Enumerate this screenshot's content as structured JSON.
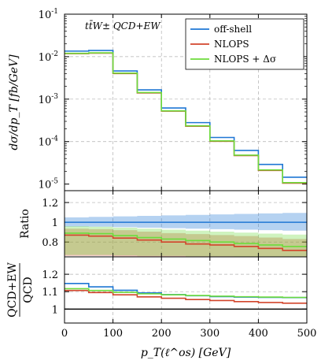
{
  "chart_data": {
    "type": "line",
    "annotation": "tt̄W± QCD+EW",
    "x_bins": [
      0,
      50,
      100,
      150,
      200,
      250,
      300,
      350,
      400,
      450,
      500
    ],
    "xlabel": "p_T(ℓ^os) [GeV]",
    "xlim": [
      0,
      500
    ],
    "x_ticks": [
      "0",
      "100",
      "200",
      "300",
      "400",
      "500"
    ],
    "grid": true,
    "legend": {
      "position": "top-right"
    },
    "panels": {
      "main": {
        "ylabel": "dσ/dp_T [fb/GeV]",
        "yscale": "log",
        "ylim": [
          7e-06,
          0.1
        ],
        "y_ticks": [
          "10^-5",
          "10^-4",
          "10^-3",
          "10^-2",
          "10^-1"
        ],
        "series": [
          {
            "name": "off-shell",
            "color": "#1f77d4",
            "values": [
              0.0135,
              0.014,
              0.0046,
              0.00165,
              0.00062,
              0.00028,
              0.000125,
              6.2e-05,
              2.9e-05,
              1.45e-05
            ]
          },
          {
            "name": "NLOPS",
            "color": "#d2452b",
            "values": [
              0.0118,
              0.0121,
              0.004,
              0.0014,
              0.00052,
              0.00023,
              0.000102,
              4.7e-05,
              2.1e-05,
              1.05e-05
            ]
          },
          {
            "name": "NLOPS + Δσ",
            "color": "#6ddc3c",
            "values": [
              0.012,
              0.0123,
              0.0041,
              0.00143,
              0.00053,
              0.000235,
              0.000104,
              4.8e-05,
              2.15e-05,
              1.08e-05
            ]
          }
        ]
      },
      "ratio": {
        "ylabel": "Ratio",
        "ylim": [
          0.65,
          1.32
        ],
        "y_ticks": [
          "0.8",
          "1",
          "1.2"
        ],
        "series": [
          {
            "name": "off-shell",
            "color": "#1f77d4",
            "values": [
              1.0,
              1.0,
              1.0,
              1.0,
              1.0,
              1.0,
              1.0,
              1.0,
              1.0,
              1.0
            ],
            "band_lo": [
              0.955,
              0.955,
              0.95,
              0.945,
              0.94,
              0.935,
              0.93,
              0.925,
              0.92,
              0.915
            ],
            "band_hi": [
              1.05,
              1.055,
              1.06,
              1.065,
              1.07,
              1.075,
              1.08,
              1.085,
              1.09,
              1.095
            ]
          },
          {
            "name": "NLOPS",
            "color": "#d2452b",
            "values": [
              0.87,
              0.86,
              0.84,
              0.82,
              0.8,
              0.78,
              0.77,
              0.755,
              0.735,
              0.715
            ],
            "band_lo": [
              0.66,
              0.66,
              0.655,
              0.65,
              0.65,
              0.65,
              0.65,
              0.65,
              0.65,
              0.65
            ],
            "band_hi": [
              0.935,
              0.93,
              0.92,
              0.905,
              0.89,
              0.88,
              0.87,
              0.86,
              0.845,
              0.83
            ]
          },
          {
            "name": "NLOPS + Δσ",
            "color": "#6ddc3c",
            "values": [
              0.89,
              0.885,
              0.865,
              0.845,
              0.83,
              0.815,
              0.8,
              0.785,
              0.77,
              0.755
            ],
            "band_lo": [
              0.67,
              0.67,
              0.665,
              0.66,
              0.66,
              0.655,
              0.655,
              0.65,
              0.65,
              0.65
            ],
            "band_hi": [
              0.96,
              0.955,
              0.945,
              0.935,
              0.925,
              0.915,
              0.905,
              0.895,
              0.885,
              0.875
            ]
          }
        ]
      },
      "qcdew": {
        "ylabel_num": "QCD+EW",
        "ylabel_den": "QCD",
        "ylim": [
          0.92,
          1.3
        ],
        "y_ticks": [
          "1",
          "1.1",
          "1.2"
        ],
        "reference": 1.0,
        "series": [
          {
            "name": "off-shell",
            "color": "#1f77d4",
            "values": [
              1.147,
              1.128,
              1.108,
              1.093,
              1.083,
              1.077,
              1.072,
              1.069,
              1.067,
              1.066
            ]
          },
          {
            "name": "NLOPS",
            "color": "#d2452b",
            "values": [
              1.107,
              1.095,
              1.082,
              1.07,
              1.062,
              1.055,
              1.049,
              1.043,
              1.038,
              1.034
            ]
          },
          {
            "name": "NLOPS + Δσ",
            "color": "#6ddc3c",
            "values": [
              1.117,
              1.107,
              1.096,
              1.088,
              1.082,
              1.078,
              1.074,
              1.071,
              1.069,
              1.067
            ]
          }
        ]
      }
    }
  }
}
